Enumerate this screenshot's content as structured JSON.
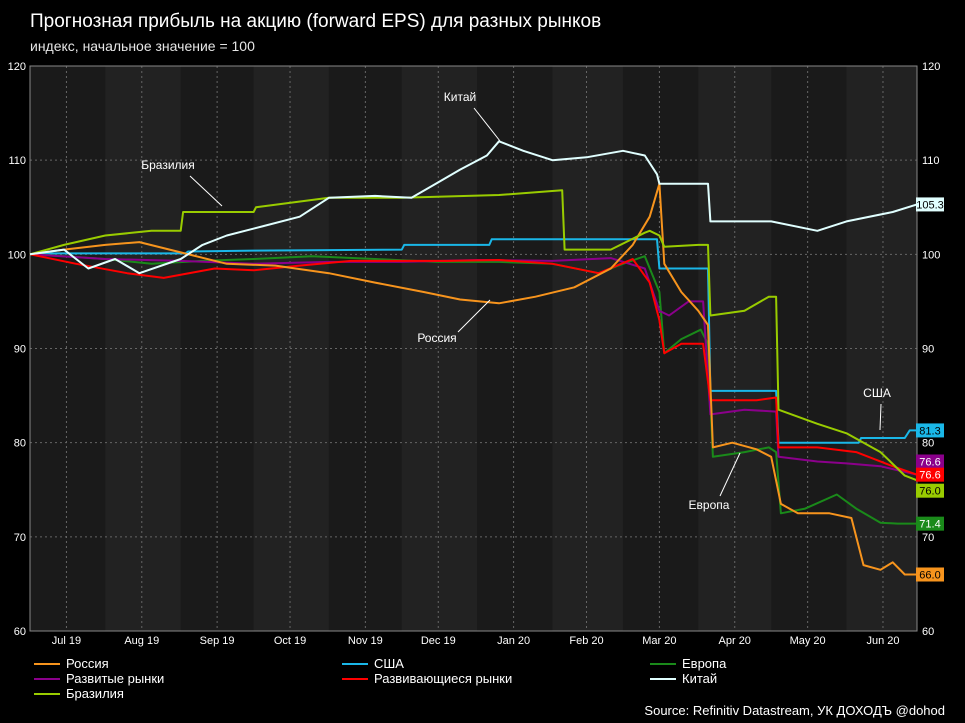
{
  "title": "Прогнозная прибыль на акцию (forward EPS) для разных рынков",
  "subtitle": "индекс, начальное значение = 100",
  "source": "Source: Refinitiv Datastream, УК ДОХОДЪ @dohod",
  "colors": {
    "background": "#000000",
    "plot_bg": "#1a1a1a",
    "plot_bg_alt": "#222222",
    "grid": "#666666",
    "Россия": "#f7941d",
    "США": "#1ab7e8",
    "Европа": "#1a8a1a",
    "Развитые рынки": "#8b008b",
    "Развивающиеся рынки": "#ff0000",
    "Китай": "#e0ffff",
    "Бразилия": "#99cc00"
  },
  "chart_data": {
    "type": "line",
    "title": "Прогнозная прибыль на акцию (forward EPS) для разных рынков",
    "subtitle": "индекс, начальное значение = 100",
    "ylim": [
      60,
      120
    ],
    "y_ticks": [
      "60",
      "70",
      "80",
      "90",
      "100",
      "110",
      "120"
    ],
    "x_ticks": [
      "Jul 19",
      "Aug 19",
      "Sep 19",
      "Oct 19",
      "Nov 19",
      "Dec 19",
      "Jan 20",
      "Feb 20",
      "Mar 20",
      "Apr 20",
      "May 20",
      "Jun 20"
    ],
    "x_range": [
      "2019-07-01",
      "2020-06-30"
    ],
    "grid": true,
    "legend_position": "bottom",
    "annotations": [
      "Китай",
      "Бразилия",
      "Россия",
      "Европа",
      "США"
    ],
    "series": [
      {
        "name": "Россия",
        "end_label": "66.0",
        "points": [
          [
            "2019-07-01",
            100
          ],
          [
            "2019-07-15",
            100.5
          ],
          [
            "2019-08-01",
            101
          ],
          [
            "2019-08-15",
            101.3
          ],
          [
            "2019-09-01",
            100.2
          ],
          [
            "2019-09-20",
            99
          ],
          [
            "2019-10-10",
            98.8
          ],
          [
            "2019-11-01",
            98
          ],
          [
            "2019-11-20",
            97
          ],
          [
            "2019-12-10",
            96
          ],
          [
            "2019-12-25",
            95.2
          ],
          [
            "2020-01-10",
            94.8
          ],
          [
            "2020-01-25",
            95.5
          ],
          [
            "2020-02-10",
            96.5
          ],
          [
            "2020-02-25",
            98.5
          ],
          [
            "2020-03-05",
            101
          ],
          [
            "2020-03-12",
            104
          ],
          [
            "2020-03-16",
            107.5
          ],
          [
            "2020-03-18",
            99
          ],
          [
            "2020-03-25",
            96
          ],
          [
            "2020-04-01",
            94
          ],
          [
            "2020-04-05",
            92.5
          ],
          [
            "2020-04-07",
            79.5
          ],
          [
            "2020-04-15",
            80
          ],
          [
            "2020-04-25",
            79.3
          ],
          [
            "2020-05-01",
            78.5
          ],
          [
            "2020-05-05",
            73.5
          ],
          [
            "2020-05-12",
            72.5
          ],
          [
            "2020-05-25",
            72.5
          ],
          [
            "2020-06-03",
            72
          ],
          [
            "2020-06-08",
            67
          ],
          [
            "2020-06-15",
            66.5
          ],
          [
            "2020-06-20",
            67.3
          ],
          [
            "2020-06-25",
            66
          ],
          [
            "2020-06-30",
            66
          ]
        ]
      },
      {
        "name": "США",
        "end_label": "81.3",
        "points": [
          [
            "2019-07-01",
            100
          ],
          [
            "2019-07-05",
            100
          ],
          [
            "2019-07-06",
            100.1
          ],
          [
            "2019-09-03",
            100.1
          ],
          [
            "2019-09-04",
            100.3
          ],
          [
            "2019-10-01",
            100.4
          ],
          [
            "2019-12-01",
            100.5
          ],
          [
            "2019-12-02",
            101
          ],
          [
            "2020-01-06",
            101
          ],
          [
            "2020-01-07",
            101.6
          ],
          [
            "2020-03-15",
            101.6
          ],
          [
            "2020-03-16",
            98.5
          ],
          [
            "2020-04-05",
            98.5
          ],
          [
            "2020-04-06",
            85.5
          ],
          [
            "2020-05-03",
            85.5
          ],
          [
            "2020-05-04",
            80
          ],
          [
            "2020-06-06",
            80
          ],
          [
            "2020-06-07",
            80.5
          ],
          [
            "2020-06-25",
            80.5
          ],
          [
            "2020-06-27",
            81.3
          ],
          [
            "2020-06-30",
            81.3
          ]
        ]
      },
      {
        "name": "Европа",
        "end_label": "71.4",
        "points": [
          [
            "2019-07-01",
            100
          ],
          [
            "2019-07-15",
            99.8
          ],
          [
            "2019-08-01",
            99.5
          ],
          [
            "2019-08-20",
            99
          ],
          [
            "2019-09-10",
            99.3
          ],
          [
            "2019-10-01",
            99.5
          ],
          [
            "2019-10-25",
            99.8
          ],
          [
            "2019-11-20",
            99.5
          ],
          [
            "2019-12-15",
            99.2
          ],
          [
            "2020-01-10",
            99.2
          ],
          [
            "2020-02-01",
            99
          ],
          [
            "2020-02-20",
            98
          ],
          [
            "2020-03-01",
            99
          ],
          [
            "2020-03-10",
            99.8
          ],
          [
            "2020-03-16",
            96
          ],
          [
            "2020-03-18",
            89.5
          ],
          [
            "2020-03-25",
            91
          ],
          [
            "2020-04-02",
            92
          ],
          [
            "2020-04-05",
            90.5
          ],
          [
            "2020-04-07",
            78.5
          ],
          [
            "2020-04-20",
            79
          ],
          [
            "2020-04-30",
            79.5
          ],
          [
            "2020-05-03",
            79
          ],
          [
            "2020-05-05",
            72.5
          ],
          [
            "2020-05-15",
            73
          ],
          [
            "2020-05-28",
            74.5
          ],
          [
            "2020-06-05",
            73
          ],
          [
            "2020-06-15",
            71.5
          ],
          [
            "2020-06-22",
            71.4
          ],
          [
            "2020-06-30",
            71.4
          ]
        ]
      },
      {
        "name": "Развитые рынки",
        "end_label": "76.6",
        "points": [
          [
            "2019-07-01",
            100
          ],
          [
            "2019-08-01",
            99.5
          ],
          [
            "2019-09-01",
            99.3
          ],
          [
            "2019-10-01",
            99
          ],
          [
            "2019-11-01",
            99.2
          ],
          [
            "2019-12-01",
            99.2
          ],
          [
            "2020-01-01",
            99.4
          ],
          [
            "2020-02-01",
            99.3
          ],
          [
            "2020-02-25",
            99.6
          ],
          [
            "2020-03-10",
            98.5
          ],
          [
            "2020-03-16",
            94
          ],
          [
            "2020-03-20",
            93.5
          ],
          [
            "2020-03-28",
            95
          ],
          [
            "2020-04-03",
            95
          ],
          [
            "2020-04-06",
            83
          ],
          [
            "2020-04-20",
            83.5
          ],
          [
            "2020-05-03",
            83.3
          ],
          [
            "2020-05-04",
            78.5
          ],
          [
            "2020-05-20",
            78
          ],
          [
            "2020-06-01",
            77.8
          ],
          [
            "2020-06-15",
            77.5
          ],
          [
            "2020-06-30",
            76.6
          ]
        ]
      },
      {
        "name": "Развивающиеся рынки",
        "end_label": "76.6",
        "points": [
          [
            "2019-07-01",
            100
          ],
          [
            "2019-07-20",
            99
          ],
          [
            "2019-08-10",
            98
          ],
          [
            "2019-08-25",
            97.5
          ],
          [
            "2019-09-15",
            98.5
          ],
          [
            "2019-10-01",
            98.3
          ],
          [
            "2019-10-20",
            98.8
          ],
          [
            "2019-11-10",
            99.3
          ],
          [
            "2019-12-01",
            99.3
          ],
          [
            "2019-12-20",
            99.3
          ],
          [
            "2020-01-10",
            99.4
          ],
          [
            "2020-02-01",
            99
          ],
          [
            "2020-02-20",
            98
          ],
          [
            "2020-03-05",
            99.5
          ],
          [
            "2020-03-12",
            97
          ],
          [
            "2020-03-16",
            93
          ],
          [
            "2020-03-18",
            89.5
          ],
          [
            "2020-03-25",
            90.5
          ],
          [
            "2020-04-03",
            90.5
          ],
          [
            "2020-04-06",
            84.5
          ],
          [
            "2020-04-25",
            84.5
          ],
          [
            "2020-05-03",
            84.8
          ],
          [
            "2020-05-04",
            79.5
          ],
          [
            "2020-05-20",
            79.5
          ],
          [
            "2020-06-05",
            79
          ],
          [
            "2020-06-20",
            77.5
          ],
          [
            "2020-06-30",
            76.6
          ]
        ]
      },
      {
        "name": "Китай",
        "end_label": "105.3",
        "points": [
          [
            "2019-07-01",
            100
          ],
          [
            "2019-07-15",
            100.5
          ],
          [
            "2019-07-25",
            98.5
          ],
          [
            "2019-08-05",
            99.5
          ],
          [
            "2019-08-15",
            98
          ],
          [
            "2019-09-01",
            99.5
          ],
          [
            "2019-09-10",
            101
          ],
          [
            "2019-09-20",
            102
          ],
          [
            "2019-10-05",
            103
          ],
          [
            "2019-10-20",
            104
          ],
          [
            "2019-11-01",
            106
          ],
          [
            "2019-11-20",
            106.2
          ],
          [
            "2019-12-05",
            106
          ],
          [
            "2019-12-15",
            107.5
          ],
          [
            "2019-12-25",
            109
          ],
          [
            "2020-01-05",
            110.5
          ],
          [
            "2020-01-10",
            112
          ],
          [
            "2020-01-20",
            111
          ],
          [
            "2020-02-01",
            110
          ],
          [
            "2020-02-15",
            110.3
          ],
          [
            "2020-03-01",
            111
          ],
          [
            "2020-03-10",
            110.5
          ],
          [
            "2020-03-15",
            108.5
          ],
          [
            "2020-03-16",
            107.5
          ],
          [
            "2020-04-01",
            107.5
          ],
          [
            "2020-04-05",
            107.5
          ],
          [
            "2020-04-06",
            103.5
          ],
          [
            "2020-05-01",
            103.5
          ],
          [
            "2020-05-20",
            102.5
          ],
          [
            "2020-06-01",
            103.5
          ],
          [
            "2020-06-20",
            104.5
          ],
          [
            "2020-06-30",
            105.3
          ]
        ]
      },
      {
        "name": "Бразилия",
        "end_label": "76.0",
        "points": [
          [
            "2019-07-01",
            100
          ],
          [
            "2019-07-15",
            101
          ],
          [
            "2019-08-01",
            102
          ],
          [
            "2019-08-20",
            102.5
          ],
          [
            "2019-09-01",
            102.5
          ],
          [
            "2019-09-02",
            104.5
          ],
          [
            "2019-10-01",
            104.5
          ],
          [
            "2019-10-02",
            105
          ],
          [
            "2019-11-01",
            106
          ],
          [
            "2019-12-01",
            106
          ],
          [
            "2020-01-10",
            106.3
          ],
          [
            "2020-02-05",
            106.8
          ],
          [
            "2020-02-06",
            100.5
          ],
          [
            "2020-02-25",
            100.5
          ],
          [
            "2020-03-10",
            102.3
          ],
          [
            "2020-03-12",
            102.5
          ],
          [
            "2020-03-16",
            102
          ],
          [
            "2020-03-18",
            100.8
          ],
          [
            "2020-04-01",
            101
          ],
          [
            "2020-04-05",
            101
          ],
          [
            "2020-04-06",
            93.5
          ],
          [
            "2020-04-20",
            94
          ],
          [
            "2020-04-30",
            95.5
          ],
          [
            "2020-05-03",
            95.5
          ],
          [
            "2020-05-04",
            83.5
          ],
          [
            "2020-05-20",
            82
          ],
          [
            "2020-06-01",
            81
          ],
          [
            "2020-06-15",
            79
          ],
          [
            "2020-06-25",
            76.5
          ],
          [
            "2020-06-30",
            76.0
          ]
        ]
      }
    ]
  },
  "legend": [
    {
      "label": "Россия",
      "color": "#f7941d"
    },
    {
      "label": "США",
      "color": "#1ab7e8"
    },
    {
      "label": "Европа",
      "color": "#1a8a1a"
    },
    {
      "label": "Развитые рынки",
      "color": "#8b008b"
    },
    {
      "label": "Развивающиеся рынки",
      "color": "#ff0000"
    },
    {
      "label": "Китай",
      "color": "#e0ffff"
    },
    {
      "label": "Бразилия",
      "color": "#99cc00"
    }
  ]
}
